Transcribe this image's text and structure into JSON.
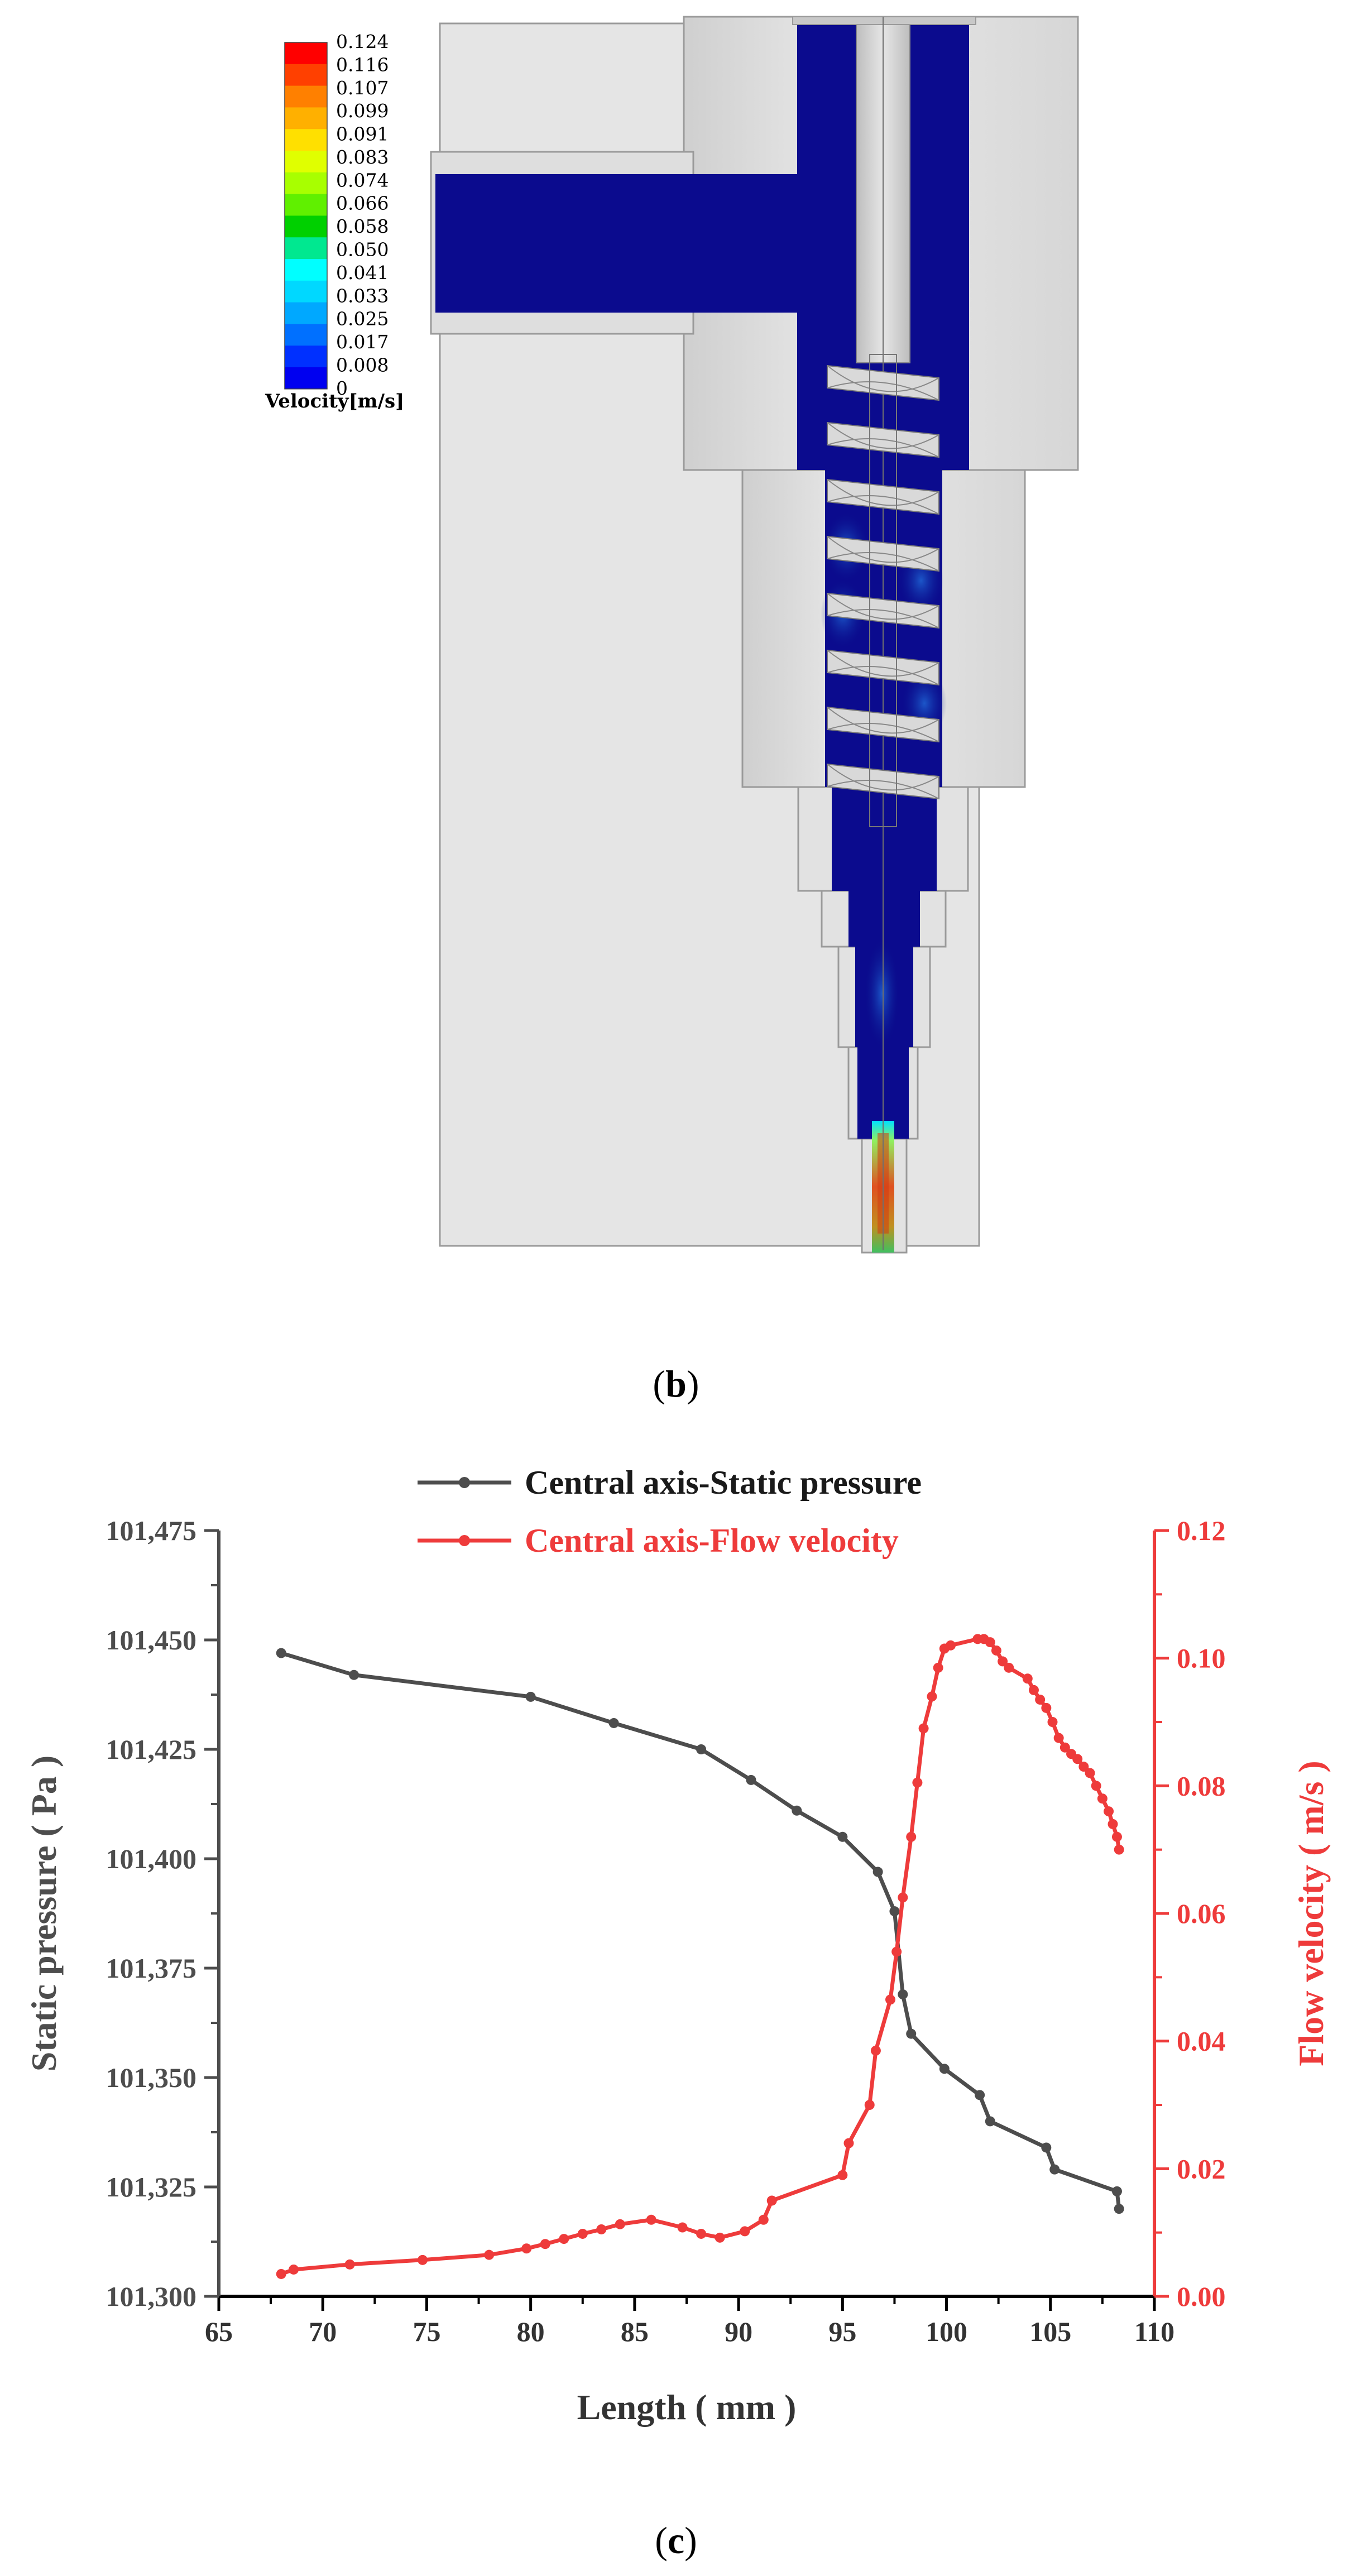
{
  "panel_b": {
    "label_open": "(",
    "label_letter": "b",
    "label_close": ")",
    "colorbar": {
      "title": "Velocity[m/s]",
      "levels": [
        "0.124",
        "0.116",
        "0.107",
        "0.099",
        "0.091",
        "0.083",
        "0.074",
        "0.066",
        "0.058",
        "0.050",
        "0.041",
        "0.033",
        "0.025",
        "0.017",
        "0.008",
        "0"
      ],
      "colors": [
        "#ff0000",
        "#ff4000",
        "#ff8000",
        "#ffb000",
        "#ffe000",
        "#e0ff00",
        "#a8ff00",
        "#60f000",
        "#00d000",
        "#00e890",
        "#00ffff",
        "#00d8ff",
        "#00a8ff",
        "#0070ff",
        "#0030ff",
        "#0000f0"
      ]
    }
  },
  "panel_c": {
    "label_open": "(",
    "label_letter": "c",
    "label_close": ")"
  },
  "chart_data": {
    "type": "line",
    "title": "",
    "xlabel": "Length ( mm )",
    "ylabel": "Static pressure ( Pa )",
    "y2label": "Flow velocity ( m/s )",
    "xlim": [
      65,
      110
    ],
    "ylim": [
      101300,
      101475
    ],
    "y2lim": [
      0,
      0.12
    ],
    "xticks": [
      65,
      70,
      75,
      80,
      85,
      90,
      95,
      100,
      105,
      110
    ],
    "yticks": [
      101300,
      101325,
      101350,
      101375,
      101400,
      101425,
      101450,
      101475
    ],
    "ytick_labels": [
      "101,300",
      "101,325",
      "101,350",
      "101,375",
      "101,400",
      "101,425",
      "101,450",
      "101,475"
    ],
    "y2ticks": [
      0,
      0.02,
      0.04,
      0.06,
      0.08,
      0.1,
      0.12
    ],
    "y2tick_labels": [
      "0.00",
      "0.02",
      "0.04",
      "0.06",
      "0.08",
      "0.10",
      "0.12"
    ],
    "legend_position": "top",
    "grid": false,
    "series": [
      {
        "name": "Central axis-Static pressure",
        "axis": "left",
        "color": "#4d4d4d",
        "x": [
          68.0,
          71.5,
          80.0,
          84.0,
          88.2,
          90.6,
          92.8,
          95.0,
          96.7,
          97.5,
          97.9,
          98.3,
          99.9,
          101.6,
          102.1,
          104.8,
          105.2,
          108.2,
          108.3
        ],
        "y": [
          101447,
          101442,
          101437,
          101431,
          101425,
          101418,
          101411,
          101405,
          101397,
          101388,
          101369,
          101360,
          101352,
          101346,
          101340,
          101334,
          101329,
          101324,
          101320
        ]
      },
      {
        "name": "Central axis-Flow velocity",
        "axis": "right",
        "color": "#ee3b3b",
        "x": [
          68.0,
          68.6,
          71.3,
          74.8,
          78.0,
          79.8,
          80.7,
          81.6,
          82.5,
          83.4,
          84.3,
          85.8,
          87.3,
          88.2,
          89.1,
          90.3,
          91.2,
          91.6,
          95.0,
          95.3,
          96.3,
          96.6,
          97.3,
          97.6,
          97.9,
          98.3,
          98.6,
          98.9,
          99.3,
          99.6,
          99.9,
          100.2,
          101.5,
          101.8,
          102.1,
          102.4,
          102.7,
          103.0,
          103.9,
          104.2,
          104.5,
          104.8,
          105.1,
          105.4,
          105.7,
          106.0,
          106.3,
          106.6,
          106.9,
          107.2,
          107.5,
          107.8,
          108.0,
          108.2,
          108.3
        ],
        "y": [
          0.0035,
          0.0042,
          0.005,
          0.0057,
          0.0065,
          0.0075,
          0.0082,
          0.009,
          0.0098,
          0.0105,
          0.0113,
          0.012,
          0.0108,
          0.0098,
          0.0092,
          0.0102,
          0.012,
          0.015,
          0.019,
          0.024,
          0.03,
          0.0385,
          0.0465,
          0.054,
          0.0625,
          0.072,
          0.0805,
          0.089,
          0.094,
          0.0985,
          0.1015,
          0.102,
          0.103,
          0.103,
          0.1025,
          0.1012,
          0.0995,
          0.0985,
          0.0968,
          0.095,
          0.0935,
          0.0922,
          0.09,
          0.0875,
          0.086,
          0.085,
          0.0842,
          0.083,
          0.082,
          0.08,
          0.078,
          0.076,
          0.074,
          0.072,
          0.07
        ]
      }
    ]
  }
}
